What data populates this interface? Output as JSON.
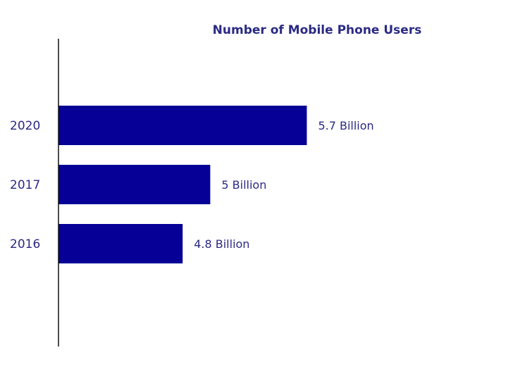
{
  "chart_data": {
    "type": "bar",
    "orientation": "horizontal",
    "title": "Number of Mobile Phone Users",
    "categories": [
      "2020",
      "2017",
      "2016"
    ],
    "values": [
      5.7,
      5.0,
      4.8
    ],
    "data_labels": [
      "5.7 Billion",
      "5 Billion",
      "4.8 Billion"
    ],
    "unit": "Billion",
    "xlim": [
      3.9,
      7.0
    ],
    "grid": false,
    "legend": "none",
    "colors": {
      "bar": "#060096",
      "text": "#2b2a84",
      "axis": "#111111"
    }
  }
}
